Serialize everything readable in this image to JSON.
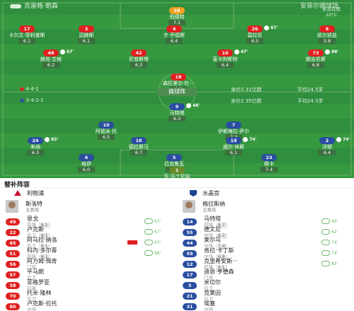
{
  "header": {
    "home_team": "克雷格·鲍森",
    "away_team": "安菲尔德球场",
    "weather": [
      "多云有雨",
      "10°C"
    ],
    "center_button": "换球阵"
  },
  "formations": {
    "home_formation": "4-4-1",
    "home_formation2": "3-4-2-1",
    "home_value": "身价2.31亿欧",
    "home_age": "平均24.5岁",
    "away_value": "身价2.35亿欧",
    "away_age": "平均24.5岁"
  },
  "pitch_players": [
    {
      "num": "29",
      "name": "伯德特",
      "rating": "7.1",
      "team": "gk-red",
      "event": ""
    },
    {
      "num": "17",
      "name": "卡尔文·菲利普斯",
      "rating": "6.1",
      "team": "red",
      "event": ""
    },
    {
      "num": "3",
      "name": "迈赫斯",
      "rating": "6.1",
      "team": "red",
      "event": ""
    },
    {
      "num": "4",
      "name": "齐·乔德斯",
      "rating": "6.4",
      "team": "red",
      "event": ""
    },
    {
      "num": "26",
      "name": "莫拉尼",
      "rating": "6.5",
      "team": "red",
      "event": "67'"
    },
    {
      "num": "6",
      "name": "凯尔凯兹",
      "rating": "5.8",
      "team": "red",
      "event": ""
    },
    {
      "num": "48",
      "name": "赫克·艾格",
      "rating": "6.2",
      "team": "red",
      "event": "67'"
    },
    {
      "num": "42",
      "name": "尼普斯塔",
      "rating": "6.3",
      "team": "red",
      "event": ""
    },
    {
      "num": "10",
      "name": "麦卡利斯特",
      "rating": "6.4",
      "team": "red",
      "event": "67'"
    },
    {
      "num": "73",
      "name": "朗吉尼斯",
      "rating": "6.8",
      "team": "red",
      "event": "86'"
    },
    {
      "num": "18",
      "name": "森拉里尔·杜···",
      "rating": "6.3",
      "team": "red",
      "event": ""
    },
    {
      "num": "9",
      "name": "马特塔",
      "rating": "6.3",
      "team": "blue",
      "event": "46'"
    },
    {
      "num": "10",
      "name": "阿德米·托",
      "rating": "6.5",
      "team": "blue",
      "event": ""
    },
    {
      "num": "7",
      "name": "伊斯梅拉·萨尔",
      "rating": "7.3",
      "team": "blue",
      "event": ""
    },
    {
      "num": "24",
      "name": "朱纳",
      "rating": "6.3",
      "team": "blue",
      "event": "83'"
    },
    {
      "num": "18",
      "name": "德拉斯马",
      "rating": "6.7",
      "team": "blue",
      "event": ""
    },
    {
      "num": "19",
      "name": "威尔·休斯",
      "rating": "6.1",
      "team": "blue",
      "event": "74'"
    },
    {
      "num": "2",
      "name": "沃顿",
      "rating": "6.4",
      "team": "blue",
      "event": "74'"
    },
    {
      "num": "6",
      "name": "格伊",
      "rating": "6.0",
      "team": "blue",
      "event": ""
    },
    {
      "num": "5",
      "name": "拉克鲁瓦",
      "rating": "6.1",
      "team": "blue",
      "event": ""
    },
    {
      "num": "23",
      "name": "穆卡",
      "rating": "7.4",
      "team": "blue",
      "event": ""
    },
    {
      "num": "1",
      "name": "瓦·马丁尼兹",
      "rating": "6.8",
      "team": "gk-blue",
      "event": ""
    }
  ],
  "lineups": {
    "title": "替补阵容",
    "home": {
      "team": "利物浦",
      "manager": "斯洛特",
      "manager_role": "主教练",
      "players": [
        {
          "num": "49",
          "name": "恩戈",
          "role": "前锋",
          "rating": "6.1",
          "sub": "67'",
          "card": false
        },
        {
          "num": "22",
          "name": "卢克斯",
          "role": "后卫",
          "rating": "6.1",
          "sub": "67'",
          "card": false
        },
        {
          "num": "65",
          "name": "阿马拉·纳洛",
          "role": "后卫",
          "rating": "6.1",
          "sub": "67'",
          "card": true
        },
        {
          "num": "51",
          "name": "科内·多尔蒂",
          "role": "前锋",
          "rating": "6.1",
          "sub": "86'",
          "card": false
        },
        {
          "num": "56",
          "name": "阿万姆·佩奇",
          "role": "门将",
          "rating": "",
          "sub": "",
          "card": false
        },
        {
          "num": "57",
          "name": "平马朗",
          "role": "后卫",
          "rating": "",
          "sub": "",
          "card": false
        },
        {
          "num": "58",
          "name": "菲格罗亚",
          "role": "前锋",
          "rating": "",
          "sub": "",
          "card": false
        },
        {
          "num": "70",
          "name": "托米·隆林",
          "role": "后卫",
          "rating": "",
          "sub": "",
          "card": false
        },
        {
          "num": "80",
          "name": "卢克斯·拉托",
          "role": "中场",
          "rating": "",
          "sub": "",
          "card": false
        }
      ]
    },
    "away": {
      "team": "水晶宫",
      "manager": "格拉斯纳",
      "manager_role": "主教练",
      "players": [
        {
          "num": "14",
          "name": "马特塔",
          "role": "前锋",
          "rating": "6.7",
          "sub": "46'",
          "card": false
        },
        {
          "num": "55",
          "name": "德文尼",
          "role": "中场",
          "rating": "6.3",
          "sub": "62'",
          "card": false
        },
        {
          "num": "44",
          "name": "莱尔马",
          "role": "中场",
          "rating": "7.4",
          "sub": "74'",
          "card": false
        },
        {
          "num": "59",
          "name": "肯拉·卡丁斯",
          "role": "中场",
          "rating": "6.8",
          "sub": "74'",
          "card": false
        },
        {
          "num": "12",
          "name": "克里希安斯···",
          "role": "前锋",
          "rating": "6.1",
          "sub": "83'",
          "card": false
        },
        {
          "num": "17",
          "name": "迪恩·亨德森",
          "role": "门将",
          "rating": "",
          "sub": "",
          "card": false
        },
        {
          "num": "3",
          "name": "米切尔",
          "role": "后卫",
          "rating": "",
          "sub": "",
          "card": false
        },
        {
          "num": "21",
          "name": "克莱因",
          "role": "后卫",
          "rating": "",
          "sub": "",
          "card": false
        },
        {
          "num": "31",
          "name": "埃塞",
          "role": "中场",
          "rating": "",
          "sub": "",
          "card": false
        }
      ]
    }
  }
}
